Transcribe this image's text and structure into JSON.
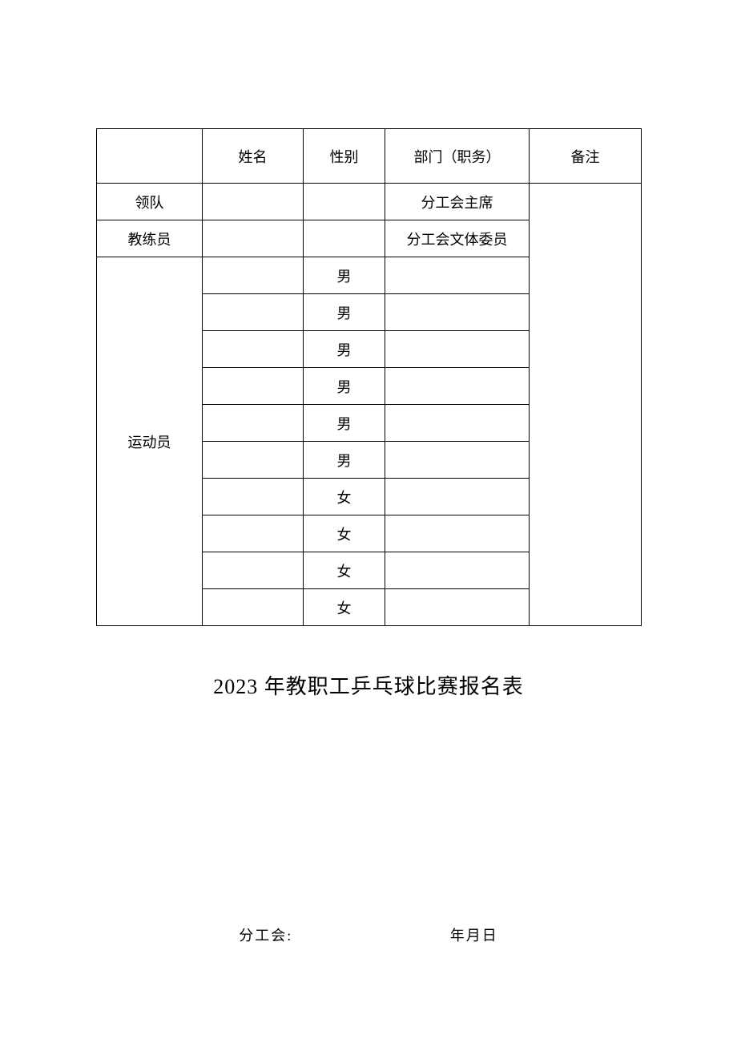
{
  "table": {
    "headers": {
      "name": "姓名",
      "gender": "性别",
      "dept": "部门（职务）",
      "note": "备注"
    },
    "leader": {
      "role": "领队",
      "name": "",
      "gender": "",
      "dept": "分工会主席"
    },
    "coach": {
      "role": "教练员",
      "name": "",
      "gender": "",
      "dept": "分工会文体委员"
    },
    "athlete_label": "运动员",
    "athletes": [
      {
        "name": "",
        "gender": "男",
        "dept": ""
      },
      {
        "name": "",
        "gender": "男",
        "dept": ""
      },
      {
        "name": "",
        "gender": "男",
        "dept": ""
      },
      {
        "name": "",
        "gender": "男",
        "dept": ""
      },
      {
        "name": "",
        "gender": "男",
        "dept": ""
      },
      {
        "name": "",
        "gender": "男",
        "dept": ""
      },
      {
        "name": "",
        "gender": "女",
        "dept": ""
      },
      {
        "name": "",
        "gender": "女",
        "dept": ""
      },
      {
        "name": "",
        "gender": "女",
        "dept": ""
      },
      {
        "name": "",
        "gender": "女",
        "dept": ""
      }
    ]
  },
  "title": "2023 年教职工乒乓球比赛报名表",
  "footer": {
    "union_label": "分工会:",
    "date_label": "年月日"
  }
}
